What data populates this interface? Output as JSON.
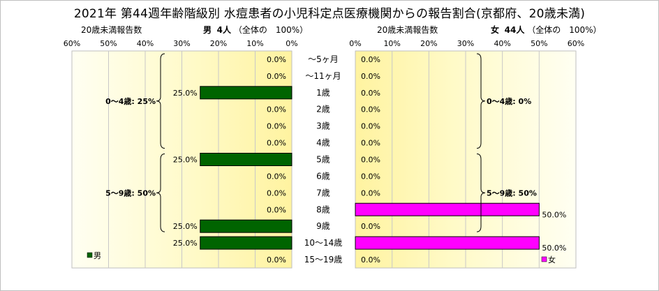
{
  "title": "2021年 第44週年齢階級別 水痘患者の小児科定点医療機関からの報告割合(京都府、20歳未満)",
  "male_header": {
    "axis_title": "20歳未満報告数",
    "series_label": "男",
    "count": "4人",
    "share": "（全体の　100%）"
  },
  "female_header": {
    "axis_title": "20歳未満報告数",
    "series_label": "女",
    "count": "44人",
    "share": "（全体の　100%）"
  },
  "chart_data": [
    {
      "type": "bar",
      "orientation": "horizontal",
      "direction": "right-to-left",
      "categories": [
        "～5ヶ月",
        "～11ヶ月",
        "1歳",
        "2歳",
        "3歳",
        "4歳",
        "5歳",
        "6歳",
        "7歳",
        "8歳",
        "9歳",
        "10～14歳",
        "15～19歳"
      ],
      "series": [
        {
          "name": "男",
          "values": [
            0.0,
            0.0,
            25.0,
            0.0,
            0.0,
            0.0,
            25.0,
            0.0,
            0.0,
            0.0,
            25.0,
            25.0,
            0.0
          ],
          "color": "#006400"
        }
      ],
      "xlim": [
        0,
        60
      ],
      "ticks": [
        "0%",
        "10%",
        "20%",
        "30%",
        "40%",
        "50%",
        "60%"
      ],
      "data_labels": [
        "0.0%",
        "0.0%",
        "25.0%",
        "0.0%",
        "0.0%",
        "0.0%",
        "25.0%",
        "0.0%",
        "0.0%",
        "0.0%",
        "25.0%",
        "25.0%",
        "0.0%"
      ],
      "group_annotations": [
        {
          "label": "0～4歳: 25%",
          "from": 0,
          "to": 5
        },
        {
          "label": "5～9歳: 50%",
          "from": 6,
          "to": 10
        }
      ],
      "legend": {
        "label": "男",
        "position": "bottom-left"
      },
      "grid": true
    },
    {
      "type": "bar",
      "orientation": "horizontal",
      "direction": "left-to-right",
      "categories": [
        "～5ヶ月",
        "～11ヶ月",
        "1歳",
        "2歳",
        "3歳",
        "4歳",
        "5歳",
        "6歳",
        "7歳",
        "8歳",
        "9歳",
        "10～14歳",
        "15～19歳"
      ],
      "series": [
        {
          "name": "女",
          "values": [
            0.0,
            0.0,
            0.0,
            0.0,
            0.0,
            0.0,
            0.0,
            0.0,
            0.0,
            50.0,
            0.0,
            50.0,
            0.0
          ],
          "color": "#ff00ff"
        }
      ],
      "xlim": [
        0,
        60
      ],
      "ticks": [
        "0%",
        "10%",
        "20%",
        "30%",
        "40%",
        "50%",
        "60%"
      ],
      "data_labels": [
        "0.0%",
        "0.0%",
        "0.0%",
        "0.0%",
        "0.0%",
        "0.0%",
        "0.0%",
        "0.0%",
        "0.0%",
        "50.0%",
        "0.0%",
        "50.0%",
        "0.0%"
      ],
      "group_annotations": [
        {
          "label": "0～4歳: 0%",
          "from": 0,
          "to": 5
        },
        {
          "label": "5～9歳: 50%",
          "from": 6,
          "to": 10
        }
      ],
      "legend": {
        "label": "女",
        "position": "bottom-right"
      },
      "grid": true
    }
  ]
}
